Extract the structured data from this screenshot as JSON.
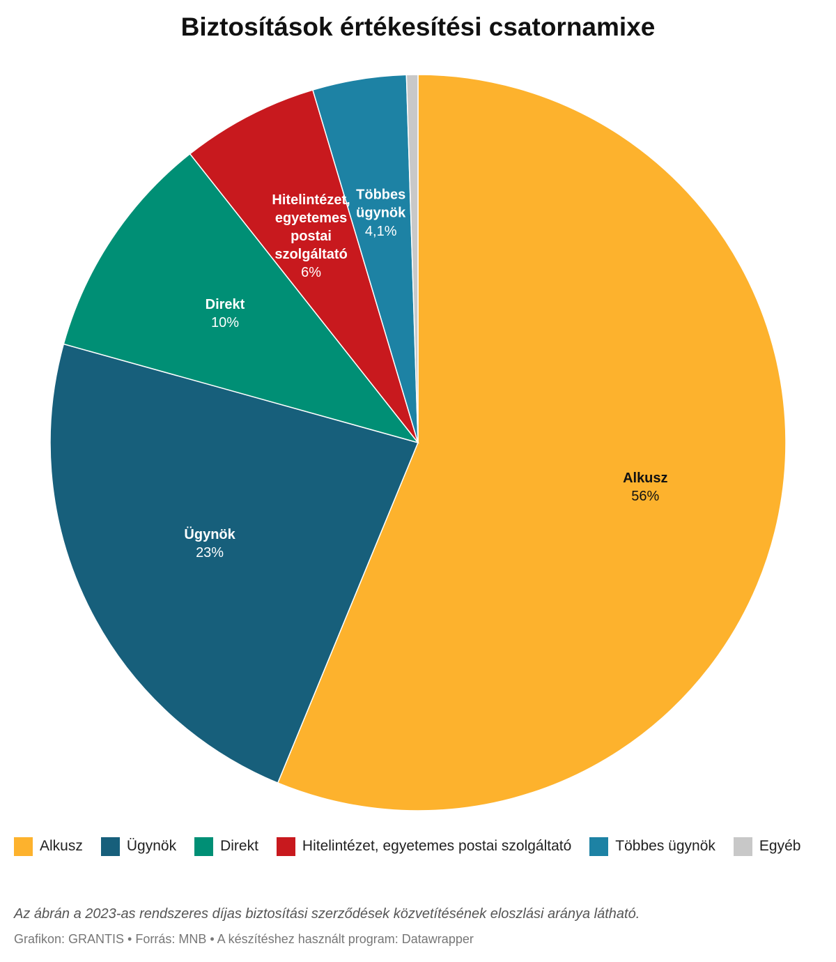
{
  "chart_data": {
    "type": "pie",
    "title": "Biztosítások értékesítési csatornamixe",
    "categories": [
      "Alkusz",
      "Ügynök",
      "Direkt",
      "Hitelintézet, egyetemes postai szolgáltató",
      "Többes ügynök",
      "Egyéb"
    ],
    "values": [
      56,
      23,
      10,
      6,
      4.1,
      0.5
    ],
    "value_labels": [
      "56%",
      "23%",
      "10%",
      "6%",
      "4,1%",
      null
    ],
    "colors": [
      "#fdb22d",
      "#175f7b",
      "#008f75",
      "#c8191e",
      "#1d82a4",
      "#c8c8c8"
    ],
    "legend": "bottom",
    "note": "Az ábrán a 2023-as rendszeres díjas biztosítási szerződések közvetítésének eloszlási aránya látható.",
    "credit": "Grafikon: GRANTIS • Forrás: MNB • A készítéshez használt program: Datawrapper"
  }
}
